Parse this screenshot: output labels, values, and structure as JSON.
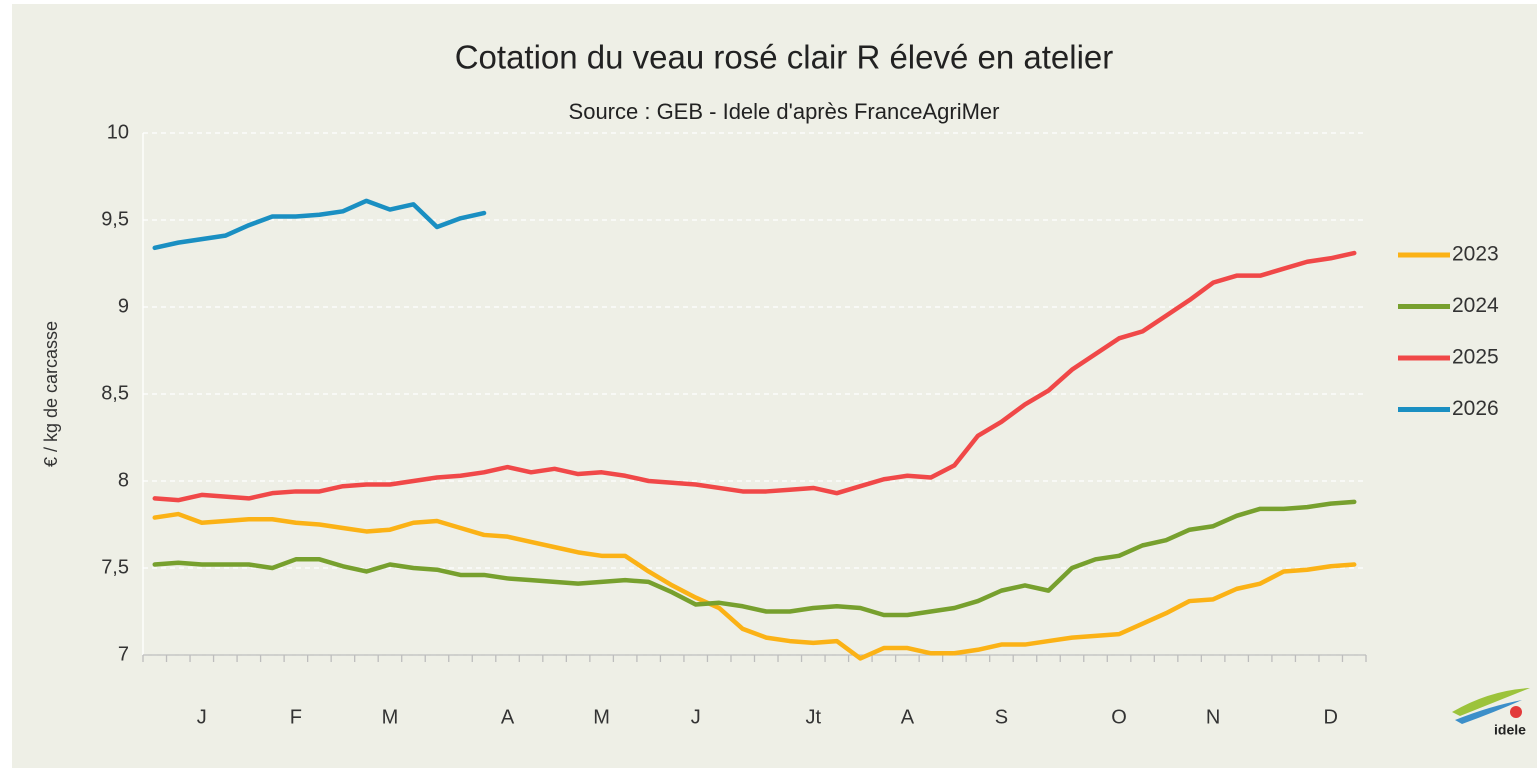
{
  "chart_data": {
    "type": "line",
    "title": "Cotation du veau rosé clair R élevé en atelier",
    "subtitle": "Source : GEB - Idele d'après FranceAgriMer",
    "y_label": "€ / kg de carcasse",
    "logo_text": "idele",
    "categories": [
      null,
      null,
      "J",
      null,
      null,
      null,
      "F",
      null,
      null,
      null,
      "M",
      null,
      null,
      null,
      null,
      "A",
      null,
      null,
      null,
      "M",
      null,
      null,
      null,
      "J",
      null,
      null,
      null,
      null,
      "Jt",
      null,
      null,
      null,
      "A",
      null,
      null,
      null,
      "S",
      null,
      null,
      null,
      null,
      "O",
      null,
      null,
      null,
      "N",
      null,
      null,
      null,
      null,
      "D",
      null
    ],
    "ylim": [
      7,
      10
    ],
    "yticks": [
      7,
      {
        "value": 7.5,
        "label": "7,5"
      },
      8,
      {
        "value": 8.5,
        "label": "8,5"
      },
      9,
      {
        "value": 9.5,
        "label": "9,5"
      },
      10
    ],
    "grid": true,
    "legend": "right",
    "series": [
      {
        "name": "2023",
        "color": "#fbb216",
        "values": [
          7.79,
          7.81,
          7.76,
          7.77,
          7.78,
          7.78,
          7.76,
          7.75,
          7.73,
          7.71,
          7.72,
          7.76,
          7.77,
          7.73,
          7.69,
          7.68,
          7.65,
          7.62,
          7.59,
          7.57,
          7.57,
          7.48,
          7.4,
          7.33,
          7.27,
          7.15,
          7.1,
          7.08,
          7.07,
          7.08,
          6.98,
          7.04,
          7.04,
          7.01,
          7.01,
          7.03,
          7.06,
          7.06,
          7.08,
          7.1,
          7.11,
          7.12,
          7.18,
          7.24,
          7.31,
          7.32,
          7.38,
          7.41,
          7.48,
          7.49,
          7.51,
          7.52
        ]
      },
      {
        "name": "2024",
        "color": "#77a02e",
        "values": [
          7.52,
          7.53,
          7.52,
          7.52,
          7.52,
          7.5,
          7.55,
          7.55,
          7.51,
          7.48,
          7.52,
          7.5,
          7.49,
          7.46,
          7.46,
          7.44,
          7.43,
          7.42,
          7.41,
          7.42,
          7.43,
          7.42,
          7.36,
          7.29,
          7.3,
          7.28,
          7.25,
          7.25,
          7.27,
          7.28,
          7.27,
          7.23,
          7.23,
          7.25,
          7.27,
          7.31,
          7.37,
          7.4,
          7.37,
          7.5,
          7.55,
          7.57,
          7.63,
          7.66,
          7.72,
          7.74,
          7.8,
          7.84,
          7.84,
          7.85,
          7.87,
          7.88
        ]
      },
      {
        "name": "2025",
        "color": "#f04848",
        "values": [
          7.9,
          7.89,
          7.92,
          7.91,
          7.9,
          7.93,
          7.94,
          7.94,
          7.97,
          7.98,
          7.98,
          8.0,
          8.02,
          8.03,
          8.05,
          8.08,
          8.05,
          8.07,
          8.04,
          8.05,
          8.03,
          8.0,
          7.99,
          7.98,
          7.96,
          7.94,
          7.94,
          7.95,
          7.96,
          7.93,
          7.97,
          8.01,
          8.03,
          8.02,
          8.09,
          8.26,
          8.34,
          8.44,
          8.52,
          8.64,
          8.73,
          8.82,
          8.86,
          8.95,
          9.04,
          9.14,
          9.18,
          9.18,
          9.22,
          9.26,
          9.28,
          9.31
        ]
      },
      {
        "name": "2026",
        "color": "#1a8fc2",
        "values": [
          9.34,
          9.37,
          9.39,
          9.41,
          9.47,
          9.52,
          9.52,
          9.53,
          9.55,
          9.61,
          9.56,
          9.59,
          9.46,
          9.51,
          9.54,
          null,
          null,
          null,
          null,
          null,
          null,
          null,
          null,
          null,
          null,
          null,
          null,
          null,
          null,
          null,
          null,
          null,
          null,
          null,
          null,
          null,
          null,
          null,
          null,
          null,
          null,
          null,
          null,
          null,
          null,
          null,
          null,
          null,
          null,
          null,
          null,
          null
        ]
      }
    ]
  }
}
